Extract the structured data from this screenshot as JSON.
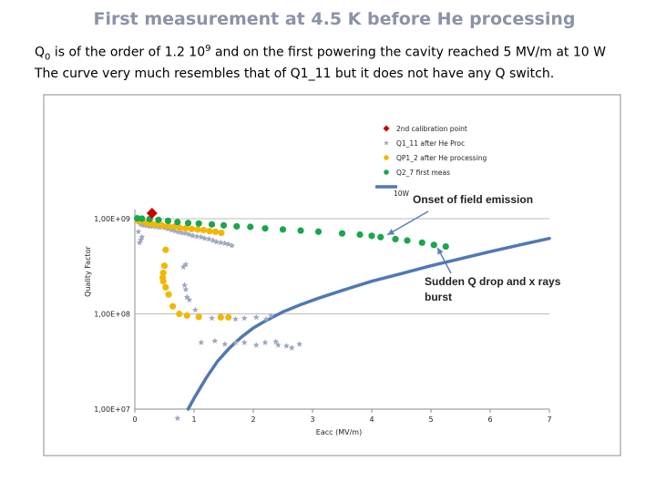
{
  "slide": {
    "title": "First measurement  at 4.5 K before He processing",
    "line1": {
      "q": "Q",
      "sub": "0",
      "text_a": " is of the order of 1.2 10",
      "sup": "9",
      "text_b": " and on the first powering the cavity reached 5 MV/m at 10 W"
    },
    "line2": "The curve very much resembles that of Q1_11 but it does not have any Q switch."
  },
  "colors": {
    "calibration": "#cc0000",
    "q1_11": "#9ca7bf",
    "qp1_2": "#f2b705",
    "q2_7": "#1aa64a",
    "power": "#4f78b5",
    "grid": "#bdbdbd",
    "frame": "#8c8c8c"
  },
  "chart_data": {
    "type": "scatter",
    "title": "",
    "xlabel": "Eacc (MV/m)",
    "ylabel": "Quality Factor",
    "xlim": [
      0,
      7
    ],
    "ylim": [
      10000000,
      1000000000
    ],
    "yscale": "log",
    "x_ticks": [
      "0",
      "1",
      "2",
      "3",
      "4",
      "5",
      "6",
      "7"
    ],
    "y_ticks": [
      "1,00E+07",
      "1,00E+08",
      "1,00E+09"
    ],
    "y_tick_values": [
      10000000,
      100000000,
      1000000000
    ],
    "grid": "horizontal",
    "legend": "top-right",
    "series": [
      {
        "name": "2nd calibration point",
        "marker": "diamond",
        "points": [
          [
            0.29,
            1140000000
          ]
        ]
      },
      {
        "name": "Q1_11 after He Proc",
        "marker": "star",
        "points": [
          [
            0.04,
            980000000
          ],
          [
            0.06,
            920000000
          ],
          [
            0.09,
            880000000
          ],
          [
            0.12,
            860000000
          ],
          [
            0.16,
            850000000
          ],
          [
            0.2,
            840000000
          ],
          [
            0.25,
            830000000
          ],
          [
            0.3,
            830000000
          ],
          [
            0.36,
            820000000
          ],
          [
            0.42,
            810000000
          ],
          [
            0.5,
            800000000
          ],
          [
            0.56,
            780000000
          ],
          [
            0.62,
            760000000
          ],
          [
            0.68,
            740000000
          ],
          [
            0.74,
            720000000
          ],
          [
            0.8,
            710000000
          ],
          [
            0.86,
            700000000
          ],
          [
            0.92,
            680000000
          ],
          [
            0.98,
            660000000
          ],
          [
            1.05,
            650000000
          ],
          [
            1.12,
            640000000
          ],
          [
            1.18,
            620000000
          ],
          [
            1.25,
            610000000
          ],
          [
            1.32,
            590000000
          ],
          [
            1.38,
            570000000
          ],
          [
            1.45,
            560000000
          ],
          [
            1.52,
            550000000
          ],
          [
            1.58,
            540000000
          ],
          [
            1.64,
            520000000
          ],
          [
            0.06,
            730000000
          ],
          [
            0.08,
            560000000
          ],
          [
            0.1,
            600000000
          ],
          [
            0.12,
            640000000
          ],
          [
            0.82,
            310000000
          ],
          [
            0.86,
            330000000
          ],
          [
            0.84,
            200000000
          ],
          [
            0.86,
            180000000
          ],
          [
            0.88,
            150000000
          ],
          [
            0.92,
            140000000
          ],
          [
            1.02,
            110000000
          ],
          [
            1.3,
            90000000
          ],
          [
            1.45,
            95000000
          ],
          [
            1.7,
            88000000
          ],
          [
            1.85,
            90000000
          ],
          [
            2.05,
            92000000
          ],
          [
            2.22,
            88000000
          ],
          [
            2.3,
            95000000
          ],
          [
            1.12,
            50000000
          ],
          [
            1.35,
            52000000
          ],
          [
            1.52,
            48000000
          ],
          [
            1.7,
            50000000
          ],
          [
            1.85,
            50000000
          ],
          [
            2.05,
            47000000
          ],
          [
            2.2,
            50000000
          ],
          [
            2.38,
            51000000
          ],
          [
            2.42,
            47000000
          ],
          [
            2.56,
            46000000
          ],
          [
            2.65,
            44000000
          ],
          [
            2.78,
            48000000
          ],
          [
            0.72,
            8000000
          ]
        ]
      },
      {
        "name": "QP1_2 after He processing",
        "marker": "circle",
        "points": [
          [
            0.05,
            960000000
          ],
          [
            0.12,
            930000000
          ],
          [
            0.2,
            900000000
          ],
          [
            0.28,
            880000000
          ],
          [
            0.36,
            870000000
          ],
          [
            0.46,
            850000000
          ],
          [
            0.56,
            840000000
          ],
          [
            0.66,
            820000000
          ],
          [
            0.76,
            800000000
          ],
          [
            0.86,
            790000000
          ],
          [
            0.96,
            780000000
          ],
          [
            1.06,
            770000000
          ],
          [
            1.16,
            760000000
          ],
          [
            1.26,
            740000000
          ],
          [
            1.36,
            730000000
          ],
          [
            1.46,
            710000000
          ],
          [
            0.52,
            470000000
          ],
          [
            0.5,
            320000000
          ],
          [
            0.48,
            270000000
          ],
          [
            0.47,
            240000000
          ],
          [
            0.48,
            220000000
          ],
          [
            0.52,
            190000000
          ],
          [
            0.57,
            160000000
          ],
          [
            0.64,
            120000000
          ],
          [
            0.75,
            100000000
          ],
          [
            0.88,
            96000000
          ],
          [
            1.08,
            93000000
          ],
          [
            1.45,
            92000000
          ],
          [
            1.58,
            92000000
          ]
        ]
      },
      {
        "name": "Q2_7 first meas",
        "marker": "circle",
        "points": [
          [
            0.04,
            1010000000
          ],
          [
            0.12,
            1000000000
          ],
          [
            0.25,
            990000000
          ],
          [
            0.4,
            970000000
          ],
          [
            0.56,
            950000000
          ],
          [
            0.72,
            920000000
          ],
          [
            0.9,
            900000000
          ],
          [
            1.08,
            890000000
          ],
          [
            1.3,
            870000000
          ],
          [
            1.5,
            850000000
          ],
          [
            1.72,
            830000000
          ],
          [
            1.95,
            820000000
          ],
          [
            2.2,
            790000000
          ],
          [
            2.5,
            770000000
          ],
          [
            2.8,
            750000000
          ],
          [
            3.1,
            730000000
          ],
          [
            3.5,
            700000000
          ],
          [
            3.8,
            680000000
          ],
          [
            4.0,
            660000000
          ],
          [
            4.15,
            640000000
          ],
          [
            4.4,
            610000000
          ],
          [
            4.6,
            590000000
          ],
          [
            4.85,
            560000000
          ],
          [
            5.05,
            530000000
          ],
          [
            5.25,
            510000000
          ]
        ]
      },
      {
        "name": "10W",
        "marker": "line",
        "points": [
          [
            0.9,
            10000000
          ],
          [
            1.0,
            13000000
          ],
          [
            1.2,
            21000000
          ],
          [
            1.4,
            32000000
          ],
          [
            1.6,
            44000000
          ],
          [
            1.8,
            57000000
          ],
          [
            2.0,
            71000000
          ],
          [
            2.2,
            84000000
          ],
          [
            2.5,
            105000000
          ],
          [
            2.8,
            125000000
          ],
          [
            3.1,
            146000000
          ],
          [
            3.5,
            176000000
          ],
          [
            4.0,
            220000000
          ],
          [
            4.5,
            265000000
          ],
          [
            5.0,
            320000000
          ],
          [
            5.5,
            380000000
          ],
          [
            6.0,
            450000000
          ],
          [
            6.5,
            530000000
          ],
          [
            7.0,
            620000000
          ]
        ]
      }
    ],
    "annotations": [
      {
        "text": "Onset of field emission",
        "x": 4.25,
        "y": 620000000,
        "arrow": "to-point"
      },
      {
        "line1": "Sudden Q drop and x rays",
        "line2": "burst",
        "x": 5.05,
        "y": 530000000,
        "arrow": "to-point"
      }
    ]
  }
}
